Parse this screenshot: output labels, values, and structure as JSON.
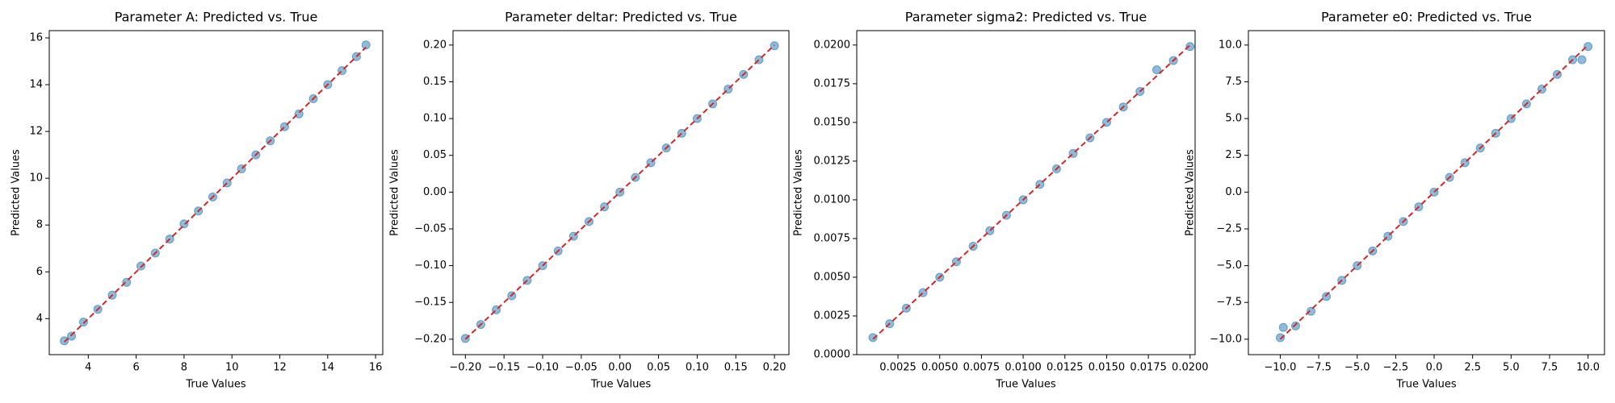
{
  "chart_data": [
    {
      "type": "scatter",
      "title": "Parameter A: Predicted vs. True",
      "x_label": "True Values",
      "y_label": "Predicted Values",
      "series": [
        {
          "color": "#1f77b4",
          "x": [
            3.0,
            3.3,
            3.8,
            4.4,
            5.0,
            5.6,
            6.2,
            6.8,
            7.4,
            8.0,
            8.6,
            9.2,
            9.8,
            10.4,
            11.0,
            11.6,
            12.2,
            12.8,
            13.4,
            14.0,
            14.6,
            15.2,
            15.6
          ],
          "y": [
            3.05,
            3.25,
            3.85,
            4.4,
            5.0,
            5.55,
            6.25,
            6.8,
            7.4,
            8.05,
            8.6,
            9.2,
            9.8,
            10.4,
            11.0,
            11.6,
            12.2,
            12.75,
            13.4,
            14.0,
            14.6,
            15.2,
            15.7
          ]
        }
      ],
      "reference_line": {
        "color": "#d62728",
        "x": [
          3.0,
          15.6
        ],
        "y": [
          3.0,
          15.6
        ]
      },
      "xlim": [
        2.37,
        16.3
      ],
      "ylim": [
        2.46,
        16.31
      ],
      "xticks": [
        4,
        6,
        8,
        10,
        12,
        14,
        16
      ],
      "yticks": [
        4,
        6,
        8,
        10,
        12,
        14,
        16
      ]
    },
    {
      "type": "scatter",
      "title": "Parameter deltar: Predicted vs. True",
      "x_label": "True Values",
      "y_label": "Predicted Values",
      "series": [
        {
          "color": "#1f77b4",
          "x": [
            -0.2,
            -0.18,
            -0.16,
            -0.14,
            -0.12,
            -0.1,
            -0.08,
            -0.06,
            -0.04,
            -0.02,
            0.0,
            0.02,
            0.04,
            0.06,
            0.08,
            0.1,
            0.12,
            0.14,
            0.16,
            0.18,
            0.2
          ],
          "y": [
            -0.199,
            -0.18,
            -0.16,
            -0.141,
            -0.12,
            -0.1,
            -0.08,
            -0.06,
            -0.04,
            -0.02,
            0.0,
            0.02,
            0.04,
            0.06,
            0.08,
            0.1,
            0.12,
            0.14,
            0.16,
            0.18,
            0.199
          ]
        }
      ],
      "reference_line": {
        "color": "#d62728",
        "x": [
          -0.2,
          0.2
        ],
        "y": [
          -0.2,
          0.2
        ]
      },
      "xlim": [
        -0.216,
        0.2187
      ],
      "ylim": [
        -0.221,
        0.2196
      ],
      "xticks": [
        {
          "value": -0.2,
          "label": "−0.20"
        },
        {
          "value": -0.15,
          "label": "−0.15"
        },
        {
          "value": -0.1,
          "label": "−0.10"
        },
        {
          "value": -0.05,
          "label": "−0.05"
        },
        {
          "value": 0,
          "label": "0.00"
        },
        {
          "value": 0.05,
          "label": "0.05"
        },
        {
          "value": 0.1,
          "label": "0.10"
        },
        {
          "value": 0.15,
          "label": "0.15"
        },
        {
          "value": 0.2,
          "label": "0.20"
        }
      ],
      "yticks": [
        {
          "value": -0.2,
          "label": "−0.20"
        },
        {
          "value": -0.15,
          "label": "−0.15"
        },
        {
          "value": -0.1,
          "label": "−0.10"
        },
        {
          "value": -0.05,
          "label": "−0.05"
        },
        {
          "value": 0,
          "label": "0.00"
        },
        {
          "value": 0.05,
          "label": "0.05"
        },
        {
          "value": 0.1,
          "label": "0.10"
        },
        {
          "value": 0.15,
          "label": "0.15"
        },
        {
          "value": 0.2,
          "label": "0.20"
        }
      ]
    },
    {
      "type": "scatter",
      "title": "Parameter sigma2: Predicted vs. True",
      "x_label": "True Values",
      "y_label": "Predicted Values",
      "series": [
        {
          "color": "#1f77b4",
          "x": [
            0.001,
            0.002,
            0.003,
            0.004,
            0.005,
            0.006,
            0.007,
            0.008,
            0.009,
            0.01,
            0.011,
            0.012,
            0.013,
            0.014,
            0.015,
            0.016,
            0.017,
            0.018,
            0.019,
            0.02
          ],
          "y": [
            0.0011,
            0.002,
            0.003,
            0.004,
            0.005,
            0.006,
            0.007,
            0.008,
            0.009,
            0.01,
            0.011,
            0.012,
            0.013,
            0.014,
            0.015,
            0.016,
            0.017,
            0.0184,
            0.019,
            0.0199
          ]
        }
      ],
      "reference_line": {
        "color": "#d62728",
        "x": [
          0.001,
          0.02
        ],
        "y": [
          0.001,
          0.02
        ]
      },
      "xlim": [
        3e-05,
        0.0203
      ],
      "ylim": [
        0,
        0.02093
      ],
      "xticks": [
        0.0025,
        {
          "value": 0.005,
          "label": "0.0050"
        },
        0.0075,
        {
          "value": 0.01,
          "label": "0.0100"
        },
        0.0125,
        {
          "value": 0.015,
          "label": "0.0150"
        },
        0.0175,
        {
          "value": 0.02,
          "label": "0.0200"
        }
      ],
      "yticks": [
        {
          "value": 0,
          "label": "0.0000"
        },
        0.0025,
        {
          "value": 0.005,
          "label": "0.0050"
        },
        0.0075,
        {
          "value": 0.01,
          "label": "0.0100"
        },
        0.0125,
        {
          "value": 0.015,
          "label": "0.0150"
        },
        0.0175,
        {
          "value": 0.02,
          "label": "0.0200"
        }
      ]
    },
    {
      "type": "scatter",
      "title": "Parameter e0: Predicted vs. True",
      "x_label": "True Values",
      "y_label": "Predicted Values",
      "series": [
        {
          "color": "#1f77b4",
          "x": [
            -10,
            -9.8,
            -9,
            -8,
            -7,
            -6,
            -5,
            -4,
            -3,
            -2,
            -1,
            0,
            1,
            2,
            3,
            4,
            5,
            6,
            7,
            8,
            9,
            9.6,
            10
          ],
          "y": [
            -9.9,
            -9.2,
            -9.1,
            -8.1,
            -7.1,
            -6.0,
            -5.0,
            -4.0,
            -3.0,
            -2.0,
            -1.0,
            0.0,
            1.0,
            2.0,
            3.0,
            4.0,
            5.0,
            6.0,
            7.0,
            8.0,
            9.0,
            9.0,
            9.9
          ]
        }
      ],
      "reference_line": {
        "color": "#d62728",
        "x": [
          -10,
          10
        ],
        "y": [
          -10,
          10
        ]
      },
      "xlim": [
        -12.07,
        11.07
      ],
      "ylim": [
        -11.05,
        10.98
      ],
      "xticks": [
        {
          "value": -10,
          "label": "−10.0"
        },
        {
          "value": -7.5,
          "label": "−7.5"
        },
        {
          "value": -5,
          "label": "−5.0"
        },
        {
          "value": -2.5,
          "label": "−2.5"
        },
        {
          "value": 0,
          "label": "0.0"
        },
        2.5,
        {
          "value": 5,
          "label": "5.0"
        },
        7.5,
        {
          "value": 10,
          "label": "10.0"
        }
      ],
      "yticks": [
        {
          "value": -10,
          "label": "−10.0"
        },
        {
          "value": -7.5,
          "label": "−7.5"
        },
        {
          "value": -5,
          "label": "−5.0"
        },
        {
          "value": -2.5,
          "label": "−2.5"
        },
        {
          "value": 0,
          "label": "0.0"
        },
        2.5,
        {
          "value": 5,
          "label": "5.0"
        },
        7.5,
        {
          "value": 10,
          "label": "10.0"
        }
      ]
    }
  ]
}
